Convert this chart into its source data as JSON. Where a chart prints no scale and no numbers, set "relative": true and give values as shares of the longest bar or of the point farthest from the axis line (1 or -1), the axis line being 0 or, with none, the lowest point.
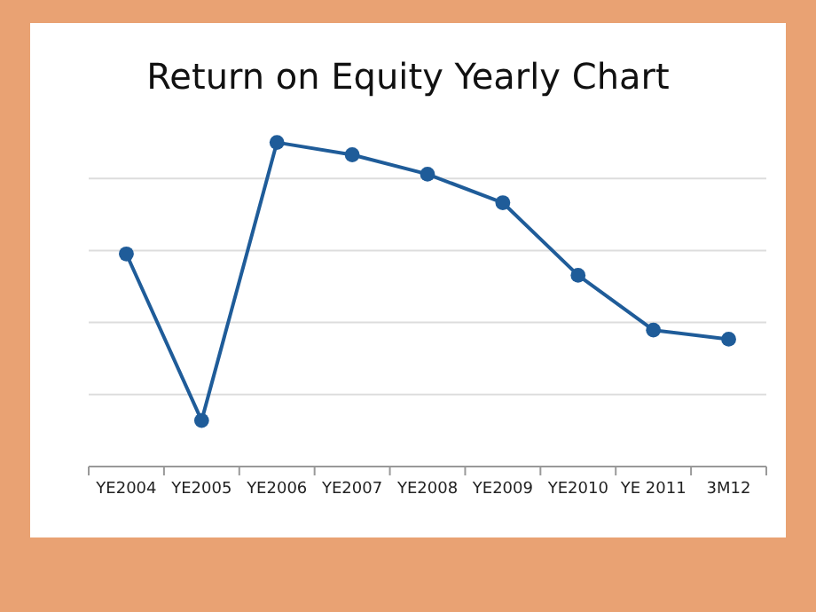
{
  "chart_data": {
    "type": "line",
    "title": "Return on Equity Yearly Chart",
    "categories": [
      "YE2004",
      "YE2005",
      "YE2006",
      "YE2007",
      "YE2008",
      "YE2009",
      "YE2010",
      "YE 2011",
      "3M12"
    ],
    "series": [
      {
        "color": "#1f5c99",
        "values": [
          0.656,
          0.142,
          1,
          0.962,
          0.902,
          0.814,
          0.59,
          0.421,
          0.393
        ]
      }
    ],
    "relative": true,
    "grid": "y",
    "marker": "circle",
    "line_style": "solid"
  }
}
